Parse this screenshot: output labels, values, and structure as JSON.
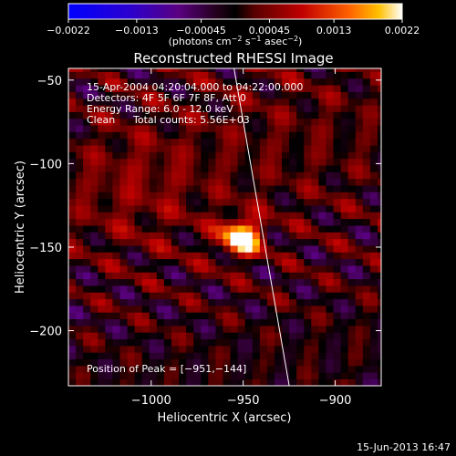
{
  "chart_data": {
    "type": "heatmap",
    "title": "Reconstructed RHESSI Image",
    "xlabel": "Heliocentric X (arcsec)",
    "ylabel": "Heliocentric Y (arcsec)",
    "xlim": [
      -1045,
      -875
    ],
    "ylim": [
      -233,
      -43
    ],
    "x_ticks": [
      -1000,
      -950,
      -900
    ],
    "x_tick_labels": [
      "−1000",
      "−950",
      "−900"
    ],
    "y_ticks": [
      -200,
      -150,
      -100,
      -50
    ],
    "y_tick_labels": [
      "−200",
      "−150",
      "−100",
      "−50"
    ],
    "colorbar": {
      "range": [
        -0.0022,
        0.0022
      ],
      "ticks": [
        -0.0022,
        -0.0013,
        -0.00045,
        0.00045,
        0.0013,
        0.0022
      ],
      "tick_labels": [
        "−0.0022",
        "−0.0013",
        "−0.00045",
        "0.00045",
        "0.0013",
        "0.0022"
      ],
      "unit_prefix": "(photons cm",
      "unit_sup1": "−2",
      "unit_mid": " s",
      "unit_sup2": "−1",
      "unit_mid2": " asec",
      "unit_sup3": "−2",
      "unit_suffix": ")"
    },
    "peak": {
      "x": -951,
      "y": -144,
      "value": 0.0022
    },
    "limb_line": [
      [
        -955,
        -43
      ],
      [
        -925,
        -233
      ]
    ],
    "annotations": {
      "time_range": "15-Apr-2004 04:20:04.000 to 04:22:00.000",
      "detectors": "Detectors: 4F 5F 6F 7F 8F, Att 0",
      "energy": "Energy Range: 6.0 - 12.0 keV",
      "algorithm": "Clean",
      "counts": "Total counts: 5.56E+03",
      "peak_position": "Position of Peak = [−951,−144]"
    },
    "grid": false
  },
  "footer": {
    "timestamp": "15-Jun-2013 16:47"
  }
}
